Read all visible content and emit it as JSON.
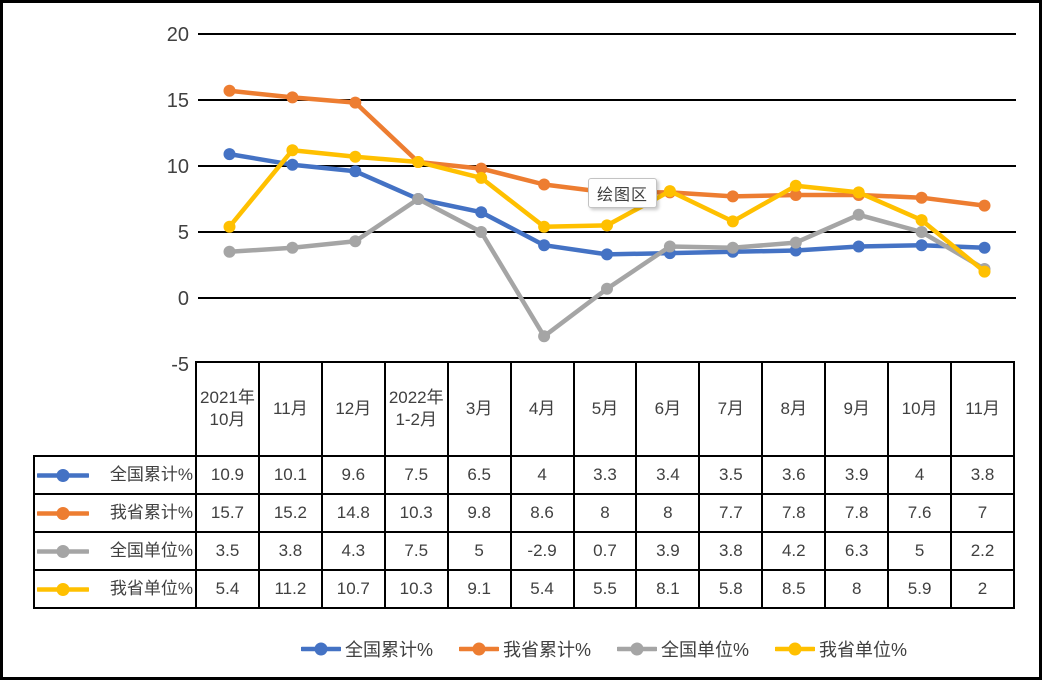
{
  "frame": {
    "background": "#ffffff",
    "border_color": "#000000"
  },
  "tooltip": {
    "text": "绘图区"
  },
  "chart_data": {
    "type": "line",
    "title": "",
    "xlabel": "",
    "ylabel": "",
    "categories": [
      "2021年10月",
      "11月",
      "12月",
      "2022年1-2月",
      "3月",
      "4月",
      "5月",
      "6月",
      "7月",
      "8月",
      "9月",
      "10月",
      "11月"
    ],
    "series": [
      {
        "name": "全国累计%",
        "color": "#4472C4",
        "values": [
          10.9,
          10.1,
          9.6,
          7.5,
          6.5,
          4,
          3.3,
          3.4,
          3.5,
          3.6,
          3.9,
          4,
          3.8
        ]
      },
      {
        "name": "我省累计%",
        "color": "#ED7D31",
        "values": [
          15.7,
          15.2,
          14.8,
          10.3,
          9.8,
          8.6,
          8,
          8,
          7.7,
          7.8,
          7.8,
          7.6,
          7
        ]
      },
      {
        "name": "全国单位%",
        "color": "#A5A5A5",
        "values": [
          3.5,
          3.8,
          4.3,
          7.5,
          5,
          -2.9,
          0.7,
          3.9,
          3.8,
          4.2,
          6.3,
          5,
          2.2
        ]
      },
      {
        "name": "我省单位%",
        "color": "#FFC000",
        "values": [
          5.4,
          11.2,
          10.7,
          10.3,
          9.1,
          5.4,
          5.5,
          8.1,
          5.8,
          8.5,
          8,
          5.9,
          2
        ]
      }
    ],
    "ylim": [
      -5,
      20
    ],
    "y_ticks": [
      20,
      15,
      10,
      5,
      0,
      -5
    ],
    "grid": true,
    "gridline_color": "#000000",
    "axis_label_color": "#404040",
    "legend_position": "bottom",
    "data_table_shown": true
  }
}
